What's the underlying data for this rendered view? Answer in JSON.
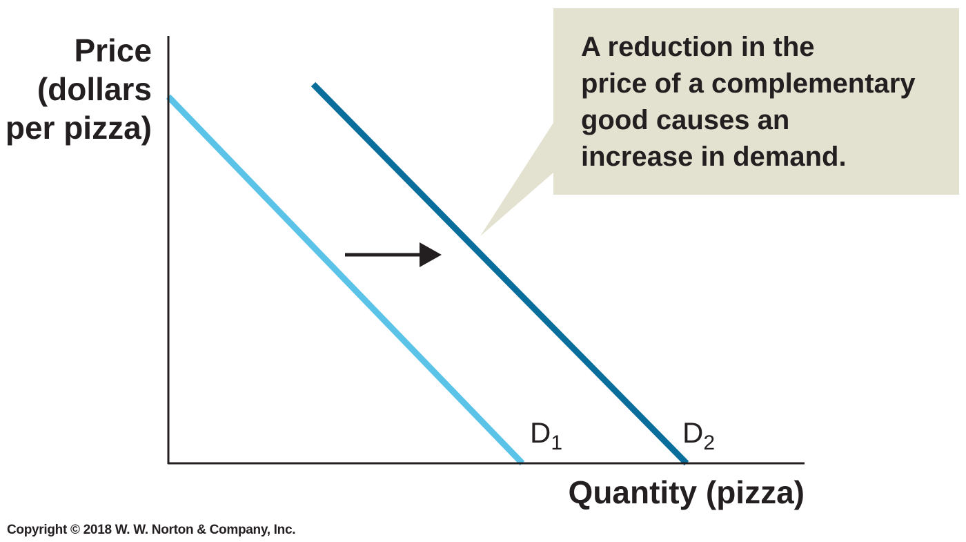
{
  "chart_data": {
    "type": "line",
    "xlabel": "Quantity (pizza)",
    "ylabel_lines": [
      "Price",
      "(dollars",
      "per pizza)"
    ],
    "series": [
      {
        "name": "D",
        "name_sub": "1",
        "color": "#5bc3e8"
      },
      {
        "name": "D",
        "name_sub": "2",
        "color": "#0a6e9c"
      }
    ],
    "annotation": {
      "lines": [
        "A reduction in the",
        "price of a complementary",
        "good causes an",
        "increase in demand."
      ],
      "background": "#e3e1cf"
    },
    "shift_arrow": {
      "direction": "right",
      "color": "#231f20"
    },
    "axis_color": "#231f20",
    "grid": false
  },
  "footer": {
    "copyright": "Copyright © 2018 W. W. Norton & Company, Inc."
  }
}
